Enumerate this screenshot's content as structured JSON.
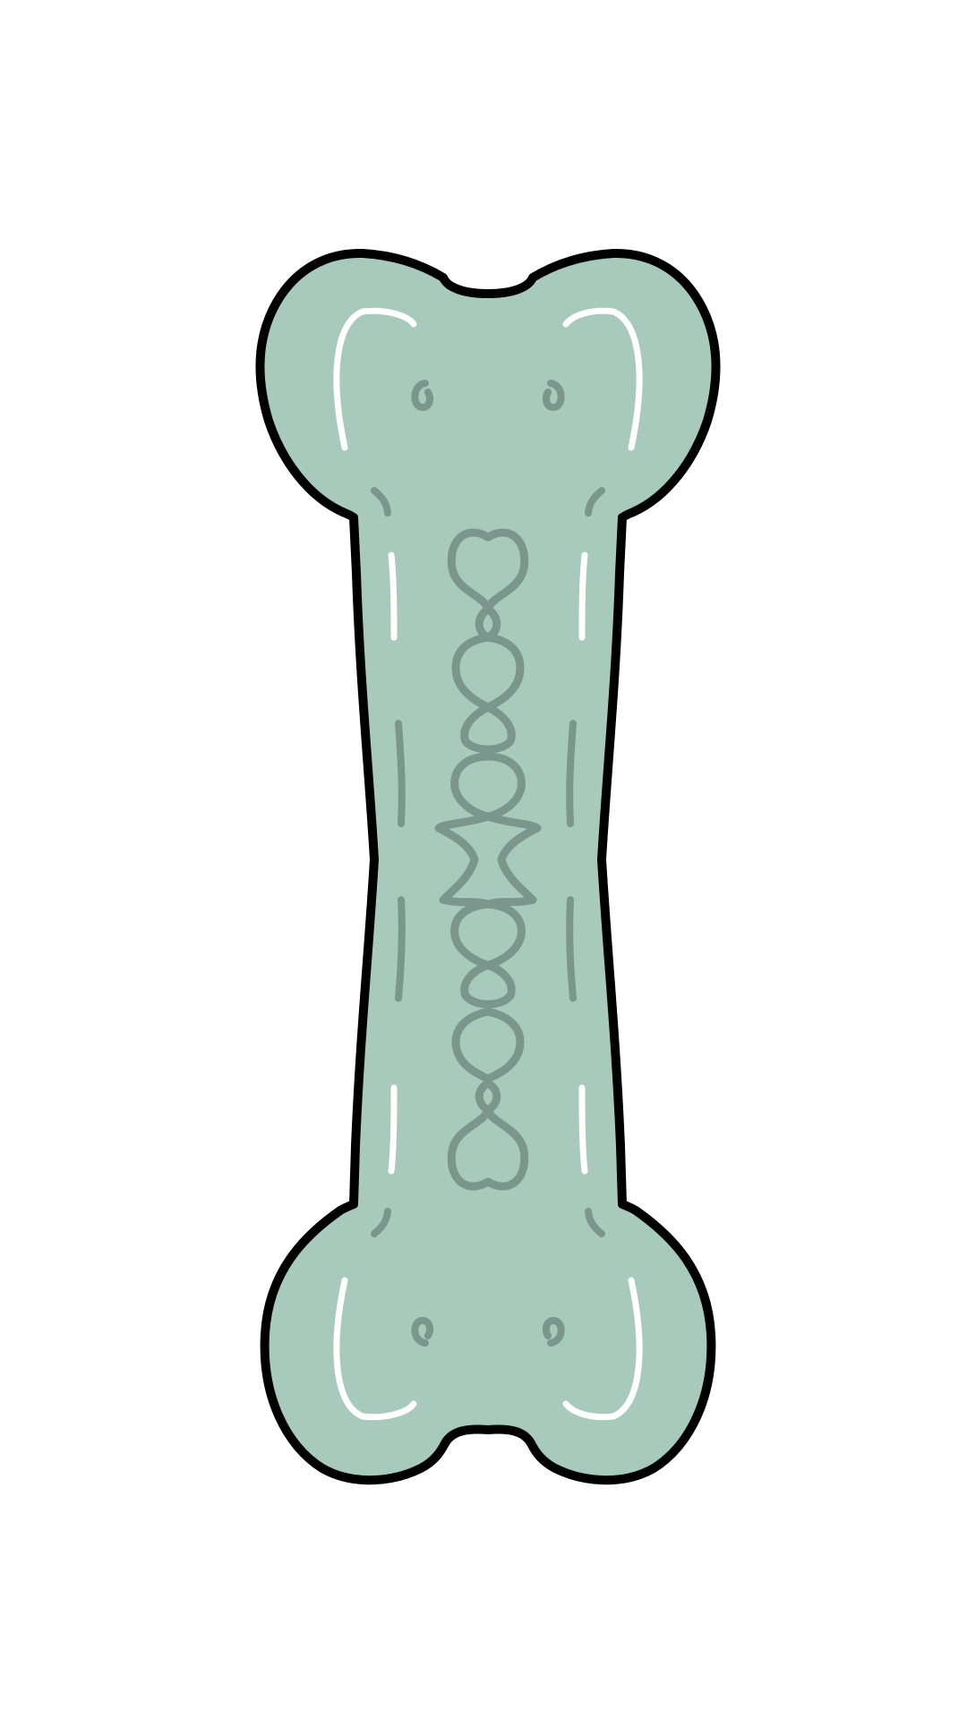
{
  "illustration": {
    "subject": "bone-icon",
    "colors": {
      "background": "#ffffff",
      "bone_fill": "#a7cabc",
      "outline": "#000000",
      "pattern": "#7b968d",
      "highlight": "#ffffff"
    }
  }
}
